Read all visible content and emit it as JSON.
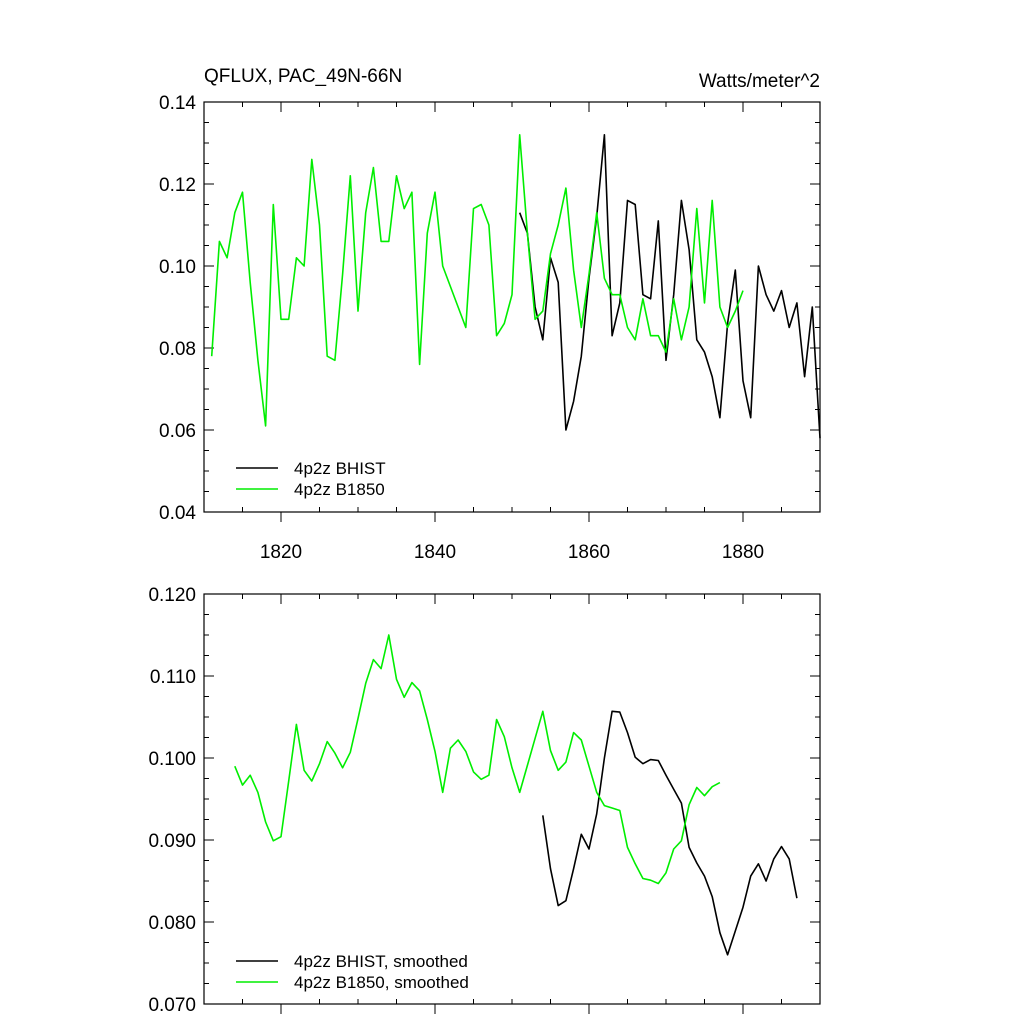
{
  "chart_data": [
    {
      "type": "line",
      "title": "QFLUX, PAC_49N-66N",
      "units_label": "Watts/meter^2",
      "xlim": [
        1810,
        1890
      ],
      "ylim": [
        0.04,
        0.14
      ],
      "xticks": [
        1820,
        1840,
        1860,
        1880
      ],
      "yticks": [
        0.04,
        0.06,
        0.08,
        0.1,
        0.12,
        0.14
      ],
      "ytick_labels": [
        "0.04",
        "0.06",
        "0.08",
        "0.10",
        "0.12",
        "0.14"
      ],
      "legend_position": "bottom-left",
      "series": [
        {
          "name": "4p2z BHIST",
          "color": "#000000",
          "x_start": 1851,
          "values": [
            0.113,
            0.108,
            0.09,
            0.082,
            0.102,
            0.096,
            0.06,
            0.067,
            0.078,
            0.097,
            0.112,
            0.132,
            0.083,
            0.091,
            0.116,
            0.115,
            0.093,
            0.092,
            0.111,
            0.077,
            0.093,
            0.116,
            0.104,
            0.082,
            0.079,
            0.073,
            0.063,
            0.086,
            0.099,
            0.072,
            0.063,
            0.1,
            0.093,
            0.089,
            0.094,
            0.085,
            0.091,
            0.073,
            0.09,
            0.058
          ]
        },
        {
          "name": "4p2z B1850",
          "color": "#00ee00",
          "x_start": 1811,
          "values": [
            0.078,
            0.106,
            0.102,
            0.113,
            0.118,
            0.096,
            0.077,
            0.061,
            0.115,
            0.087,
            0.087,
            0.102,
            0.1,
            0.126,
            0.11,
            0.078,
            0.077,
            0.098,
            0.122,
            0.089,
            0.113,
            0.124,
            0.106,
            0.106,
            0.122,
            0.114,
            0.118,
            0.076,
            0.108,
            0.118,
            0.1,
            0.095,
            0.09,
            0.085,
            0.114,
            0.115,
            0.11,
            0.083,
            0.086,
            0.093,
            0.132,
            0.108,
            0.087,
            0.089,
            0.103,
            0.11,
            0.119,
            0.099,
            0.085,
            0.098,
            0.113,
            0.097,
            0.093,
            0.093,
            0.085,
            0.082,
            0.092,
            0.083,
            0.083,
            0.079,
            0.092,
            0.082,
            0.09,
            0.114,
            0.091,
            0.116,
            0.09,
            0.085,
            0.089,
            0.094
          ]
        }
      ]
    },
    {
      "type": "line",
      "title": "",
      "xlim": [
        1810,
        1890
      ],
      "ylim": [
        0.07,
        0.12
      ],
      "xticks": [
        1820,
        1840,
        1860,
        1880
      ],
      "yticks": [
        0.07,
        0.08,
        0.09,
        0.1,
        0.11,
        0.12
      ],
      "ytick_labels": [
        "0.070",
        "0.080",
        "0.090",
        "0.100",
        "0.110",
        "0.120"
      ],
      "legend_position": "bottom-left",
      "series": [
        {
          "name": "4p2z BHIST, smoothed",
          "color": "#000000",
          "x_start": 1854,
          "values": [
            0.093,
            0.0865,
            0.082,
            0.0826,
            0.0865,
            0.0907,
            0.0889,
            0.0932,
            0.1,
            0.1057,
            0.1056,
            0.1031,
            0.1001,
            0.0993,
            0.0998,
            0.0997,
            0.0979,
            0.0962,
            0.0945,
            0.0891,
            0.0872,
            0.0856,
            0.0831,
            0.0787,
            0.076,
            0.0789,
            0.0818,
            0.0856,
            0.0871,
            0.085,
            0.0877,
            0.0892,
            0.0877,
            0.0829
          ]
        },
        {
          "name": "4p2z B1850, smoothed",
          "color": "#00ee00",
          "x_start": 1814,
          "values": [
            0.099,
            0.0967,
            0.0979,
            0.0958,
            0.0922,
            0.0899,
            0.0904,
            0.0972,
            0.1041,
            0.0985,
            0.0972,
            0.0993,
            0.102,
            0.1006,
            0.0988,
            0.1007,
            0.1048,
            0.1091,
            0.112,
            0.1109,
            0.115,
            0.1096,
            0.1074,
            0.1092,
            0.1082,
            0.1047,
            0.1008,
            0.0958,
            0.1012,
            0.1022,
            0.1008,
            0.0983,
            0.0974,
            0.0979,
            0.1047,
            0.1026,
            0.0988,
            0.0958,
            0.0991,
            0.1024,
            0.1057,
            0.1009,
            0.0985,
            0.0995,
            0.1031,
            0.1022,
            0.099,
            0.0958,
            0.0942,
            0.0939,
            0.0936,
            0.0891,
            0.0871,
            0.0853,
            0.0851,
            0.0847,
            0.086,
            0.0889,
            0.0899,
            0.0943,
            0.0964,
            0.0954,
            0.0965,
            0.097
          ]
        }
      ]
    }
  ]
}
